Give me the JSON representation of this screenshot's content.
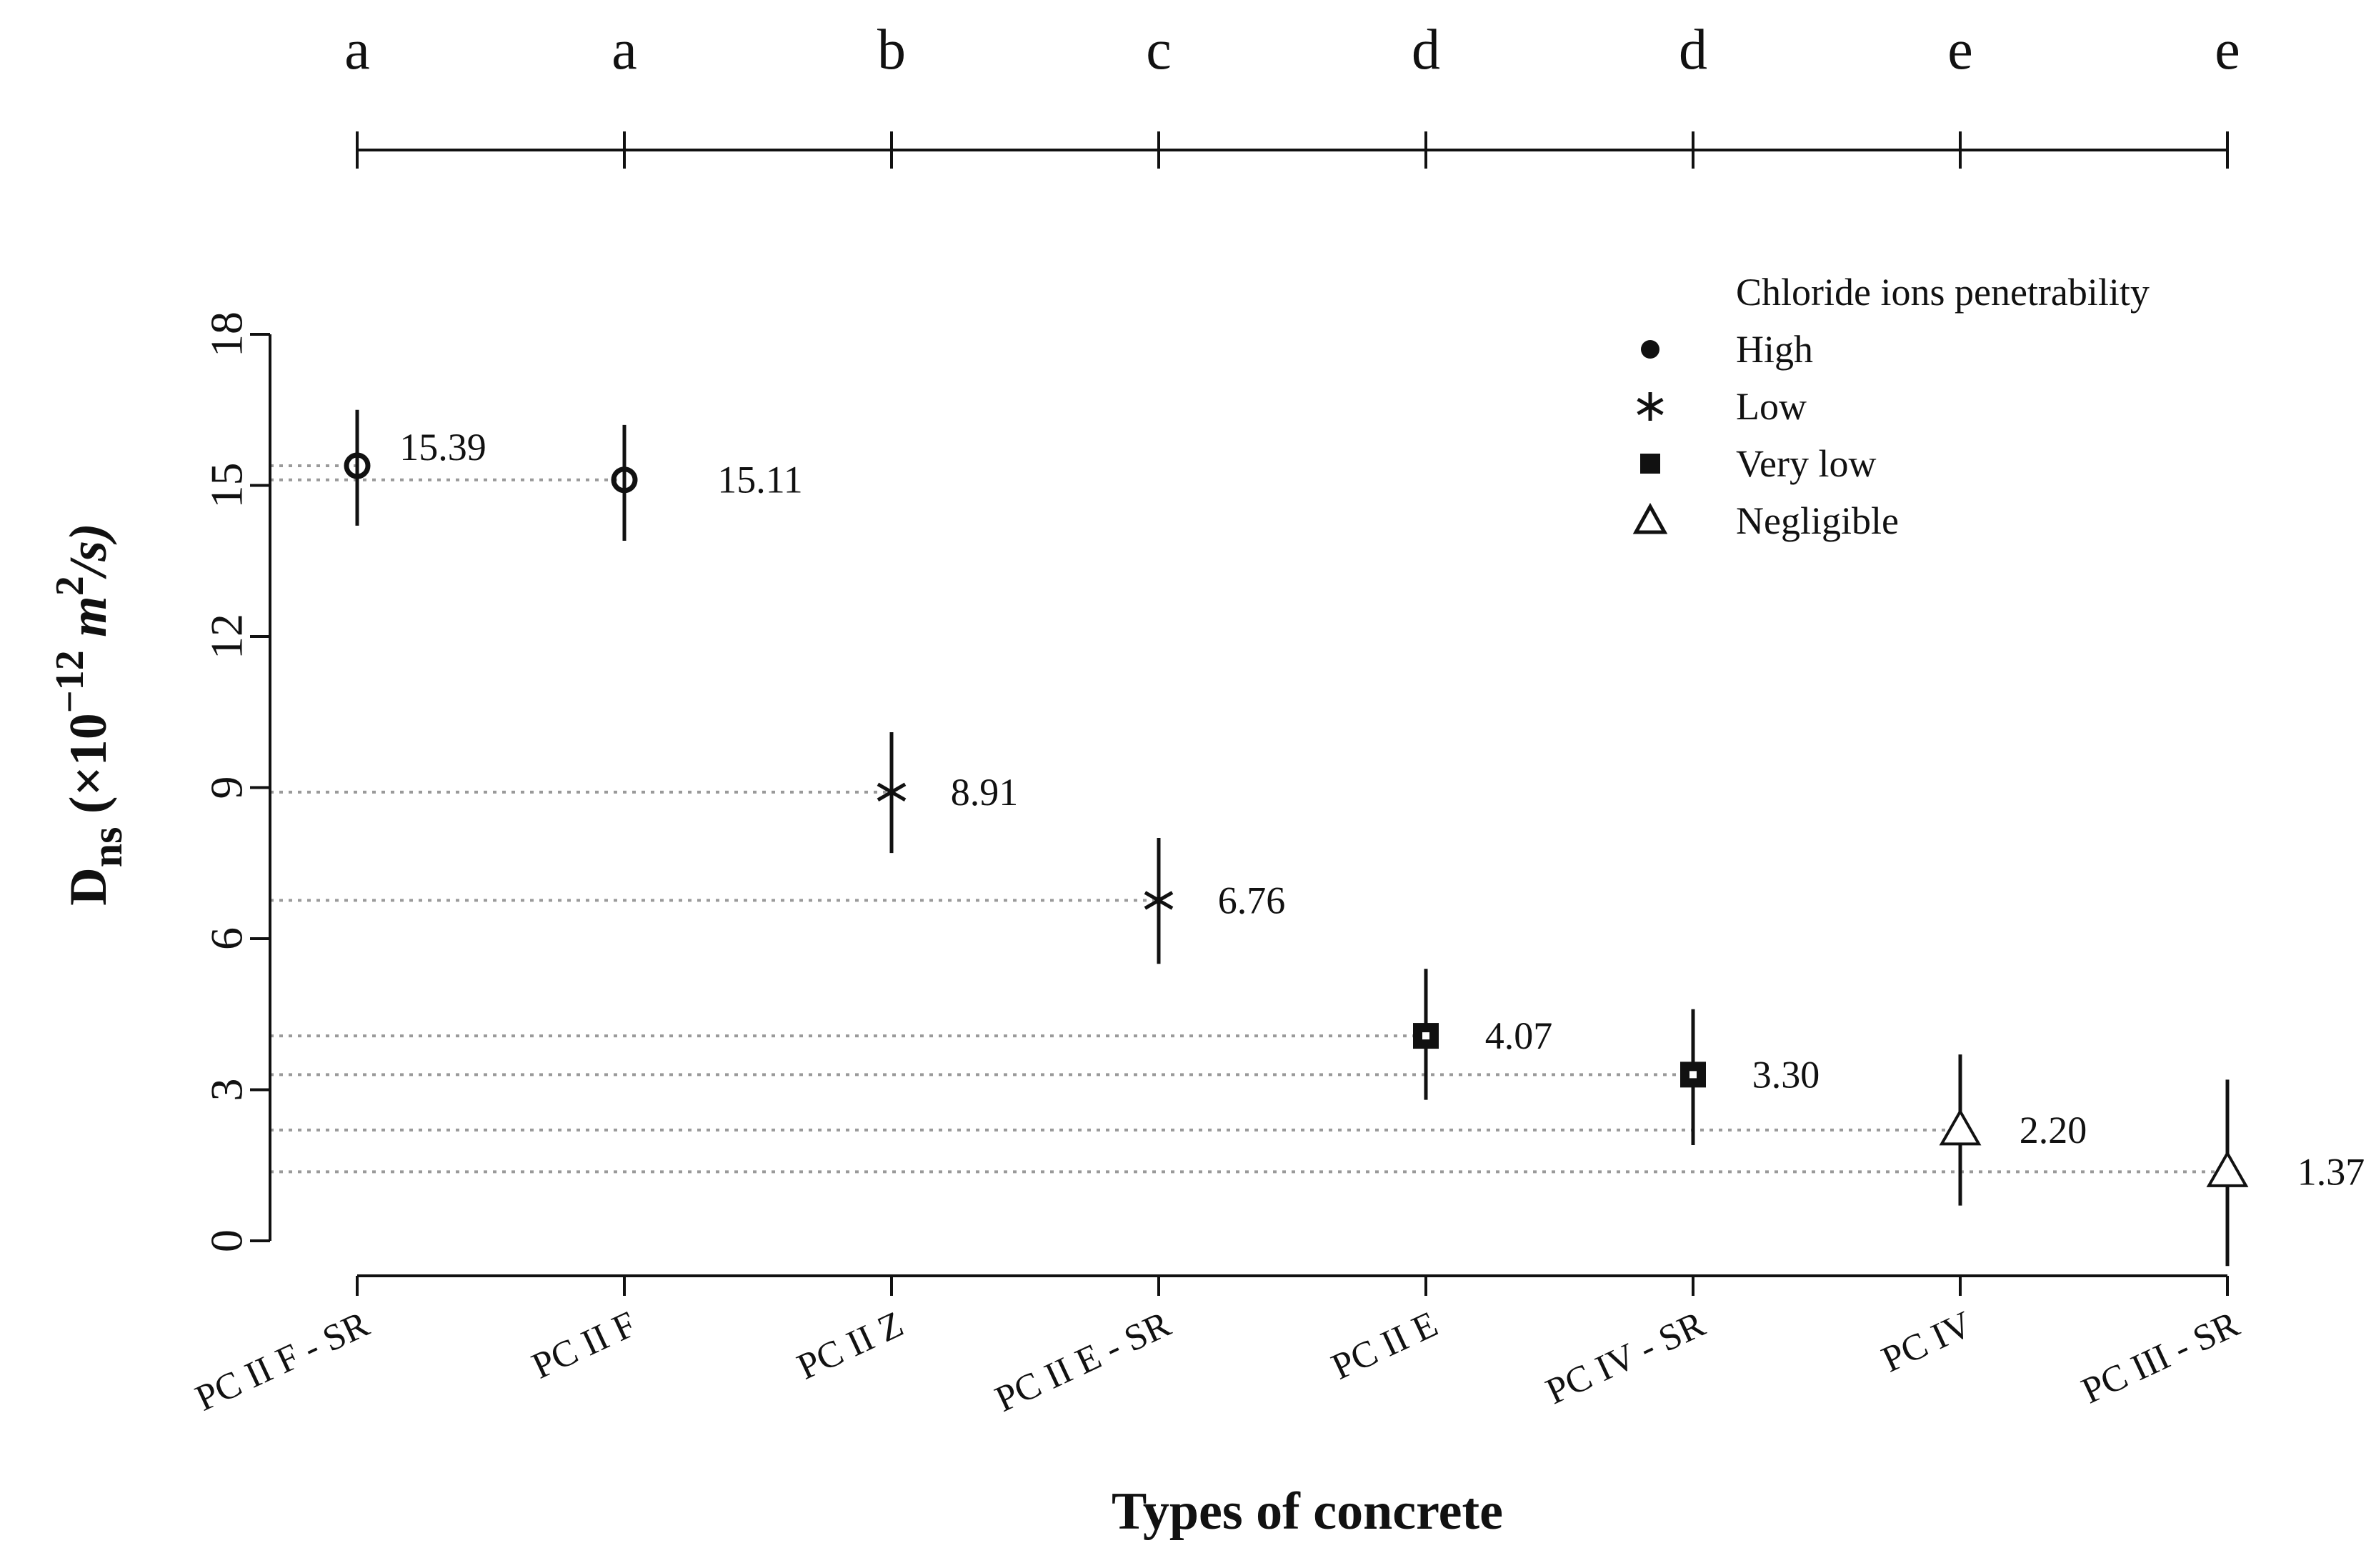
{
  "chart_data": {
    "type": "scatter",
    "title": "",
    "xlabel": "Types of concrete",
    "ylabel": "Dns (×10^-12 m^2/s)",
    "ylabel_parts": {
      "main": "D",
      "sub": "ns",
      "open": " (×10",
      "exp": "−12",
      "unit_m": " m",
      "unit_exp": "2",
      "unit_rest": "/s)"
    },
    "ylim": [
      0,
      18
    ],
    "yticks": [
      0,
      3,
      6,
      9,
      12,
      15,
      18
    ],
    "categories": [
      "PC II F - SR",
      "PC II F",
      "PC II Z",
      "PC II E - SR",
      "PC II E",
      "PC IV - SR",
      "PC IV",
      "PC III - SR"
    ],
    "values": [
      15.39,
      15.11,
      8.91,
      6.76,
      4.07,
      3.3,
      2.2,
      1.37
    ],
    "value_labels": [
      "15.39",
      "15.11",
      "8.91",
      "6.76",
      "4.07",
      "3.30",
      "2.20",
      "1.37"
    ],
    "error_low": [
      14.2,
      13.9,
      7.7,
      5.5,
      2.8,
      1.9,
      0.7,
      -0.5
    ],
    "error_high": [
      16.5,
      16.2,
      10.1,
      8.0,
      5.4,
      4.6,
      3.7,
      3.2
    ],
    "penetrability": [
      "High",
      "High",
      "Low",
      "Low",
      "Very low",
      "Very low",
      "Negligible",
      "Negligible"
    ],
    "group_letters": [
      "a",
      "a",
      "b",
      "c",
      "d",
      "d",
      "e",
      "e"
    ],
    "reference_lines": "dotted horizontal line from y-axis to each mean",
    "legend": {
      "title": "Chloride ions penetrability",
      "position": "top-right",
      "entries": [
        {
          "label": "High",
          "marker": "circle"
        },
        {
          "label": "Low",
          "marker": "asterisk"
        },
        {
          "label": "Very low",
          "marker": "square"
        },
        {
          "label": "Negligible",
          "marker": "triangle"
        }
      ]
    }
  },
  "colors": {
    "ink": "#111111",
    "guide": "#9a9a9a"
  }
}
